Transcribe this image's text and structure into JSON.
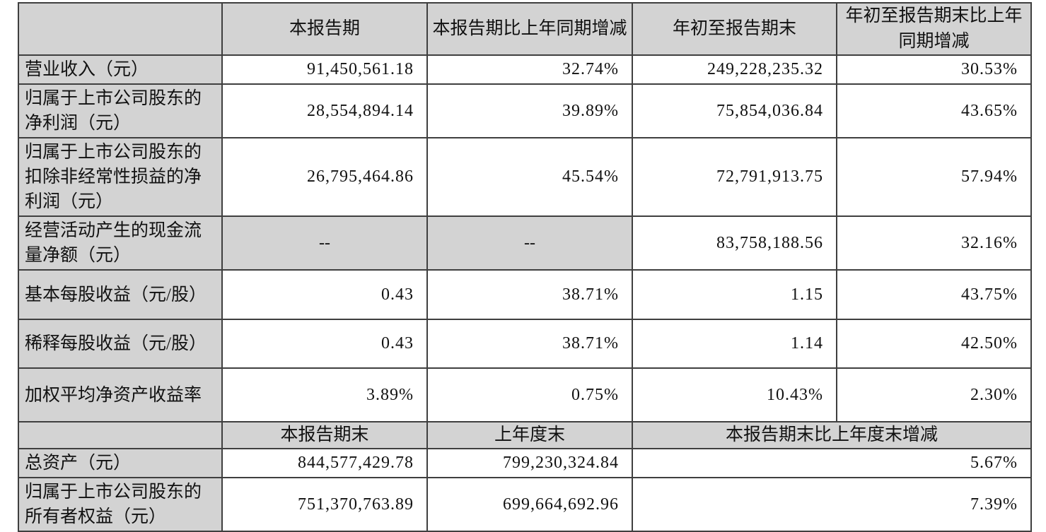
{
  "table": {
    "header": [
      "",
      "本报告期",
      "本报告期比上年同期增减",
      "年初至报告期末",
      "年初至报告期末比上年同期增减"
    ],
    "rows": [
      {
        "label": "营业收入（元）",
        "values": [
          "91,450,561.18",
          "32.74%",
          "249,228,235.32",
          "30.53%"
        ]
      },
      {
        "label": "归属于上市公司股东的净利润（元）",
        "values": [
          "28,554,894.14",
          "39.89%",
          "75,854,036.84",
          "43.65%"
        ]
      },
      {
        "label": "归属于上市公司股东的扣除非经常性损益的净利润（元）",
        "values": [
          "26,795,464.86",
          "45.54%",
          "72,791,913.75",
          "57.94%"
        ]
      },
      {
        "label": "经营活动产生的现金流量净额（元）",
        "values": [
          "--",
          "--",
          "83,758,188.56",
          "32.16%"
        ]
      },
      {
        "label": "基本每股收益（元/股）",
        "values": [
          "0.43",
          "38.71%",
          "1.15",
          "43.75%"
        ]
      },
      {
        "label": "稀释每股收益（元/股）",
        "values": [
          "0.43",
          "38.71%",
          "1.14",
          "42.50%"
        ]
      },
      {
        "label": "加权平均净资产收益率",
        "values": [
          "3.89%",
          "0.75%",
          "10.43%",
          "2.30%"
        ]
      }
    ],
    "subheader": [
      "",
      "本报告期末",
      "上年度末",
      "本报告期末比上年度末增减"
    ],
    "rows_bottom": [
      {
        "label": "总资产（元）",
        "values": [
          "844,577,429.78",
          "799,230,324.84",
          "5.67%"
        ]
      },
      {
        "label": "归属于上市公司股东的所有者权益（元）",
        "values": [
          "751,370,763.89",
          "699,664,692.96",
          "7.39%"
        ]
      }
    ],
    "colors": {
      "cell_gray": "#d3d3d3",
      "border": "#3f3f3f"
    }
  }
}
